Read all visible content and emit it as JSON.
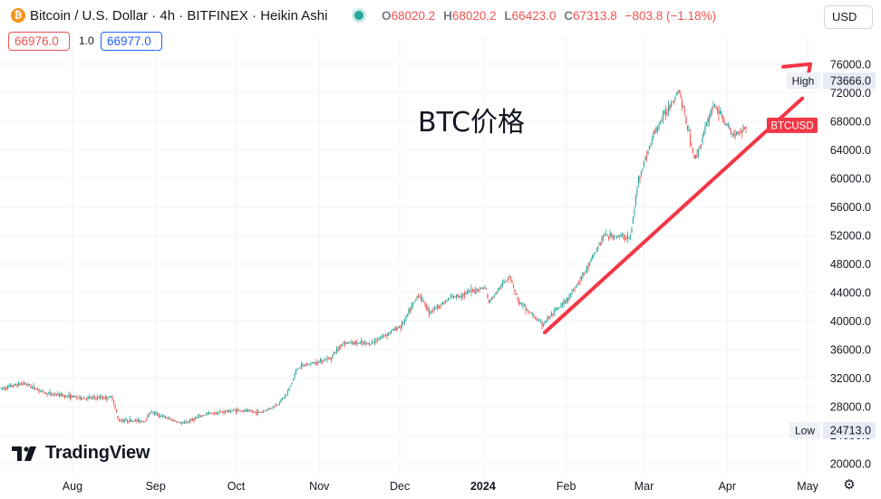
{
  "header": {
    "symbol_title": "Bitcoin / U.S. Dollar · 4h · BITFINEX · Heikin Ashi",
    "coin_icon": "bitcoin-icon",
    "ohlc": {
      "o_key": "O",
      "o_val": "68020.2",
      "h_key": "H",
      "h_val": "68020.2",
      "l_key": "L",
      "l_val": "66423.0",
      "c_key": "C",
      "c_val": "67313.8",
      "change": "−803.8 (−1.18%)"
    },
    "currency": "USD"
  },
  "trade": {
    "bid": "66976.0",
    "spread": "1.0",
    "ask": "66977.0"
  },
  "brand": {
    "logo_text": "TradingView"
  },
  "colors": {
    "up": "#26a69a",
    "down": "#ef5350",
    "trend": "#f23645",
    "axis_text": "#131722",
    "grid": "#f0f3fa"
  },
  "chart_data": {
    "type": "candlestick",
    "style": "Heikin Ashi",
    "interval": "4h",
    "annotation": "BTC价格",
    "ylim": [
      19000,
      78000
    ],
    "xlim": [
      "2023-07-05",
      "2024-05-04"
    ],
    "y_ticks": [
      "20000.0",
      "24000.0",
      "28000.0",
      "32000.0",
      "36000.0",
      "40000.0",
      "44000.0",
      "48000.0",
      "52000.0",
      "56000.0",
      "60000.0",
      "64000.0",
      "68000.0",
      "72000.0",
      "76000.0"
    ],
    "x_ticks": [
      {
        "label": "Aug",
        "date": "2023-08-01",
        "bold": false
      },
      {
        "label": "Sep",
        "date": "2023-09-01",
        "bold": false
      },
      {
        "label": "Oct",
        "date": "2023-10-01",
        "bold": false
      },
      {
        "label": "Nov",
        "date": "2023-11-01",
        "bold": false
      },
      {
        "label": "Dec",
        "date": "2023-12-01",
        "bold": false
      },
      {
        "label": "2024",
        "date": "2024-01-01",
        "bold": true
      },
      {
        "label": "Feb",
        "date": "2024-02-01",
        "bold": false
      },
      {
        "label": "Mar",
        "date": "2024-03-01",
        "bold": false
      },
      {
        "label": "Apr",
        "date": "2024-04-01",
        "bold": false
      },
      {
        "label": "May",
        "date": "2024-05-01",
        "bold": false
      }
    ],
    "price_series": [
      {
        "date": "2023-07-05",
        "value": 30500
      },
      {
        "date": "2023-07-14",
        "value": 31300
      },
      {
        "date": "2023-07-22",
        "value": 29900
      },
      {
        "date": "2023-08-05",
        "value": 29200
      },
      {
        "date": "2023-08-16",
        "value": 29300
      },
      {
        "date": "2023-08-18",
        "value": 26100
      },
      {
        "date": "2023-08-28",
        "value": 26000
      },
      {
        "date": "2023-08-30",
        "value": 27300
      },
      {
        "date": "2023-09-11",
        "value": 25600
      },
      {
        "date": "2023-09-20",
        "value": 27000
      },
      {
        "date": "2023-10-01",
        "value": 27500
      },
      {
        "date": "2023-10-10",
        "value": 27200
      },
      {
        "date": "2023-10-16",
        "value": 28200
      },
      {
        "date": "2023-10-20",
        "value": 29800
      },
      {
        "date": "2023-10-24",
        "value": 33500
      },
      {
        "date": "2023-11-05",
        "value": 34800
      },
      {
        "date": "2023-11-10",
        "value": 37000
      },
      {
        "date": "2023-11-20",
        "value": 36800
      },
      {
        "date": "2023-12-02",
        "value": 39500
      },
      {
        "date": "2023-12-08",
        "value": 43800
      },
      {
        "date": "2023-12-12",
        "value": 41300
      },
      {
        "date": "2023-12-20",
        "value": 43200
      },
      {
        "date": "2024-01-02",
        "value": 44800
      },
      {
        "date": "2024-01-03",
        "value": 42500
      },
      {
        "date": "2024-01-11",
        "value": 46500
      },
      {
        "date": "2024-01-14",
        "value": 42800
      },
      {
        "date": "2024-01-23",
        "value": 39500
      },
      {
        "date": "2024-02-01",
        "value": 42800
      },
      {
        "date": "2024-02-09",
        "value": 47500
      },
      {
        "date": "2024-02-15",
        "value": 52000
      },
      {
        "date": "2024-02-25",
        "value": 51700
      },
      {
        "date": "2024-02-28",
        "value": 60000
      },
      {
        "date": "2024-03-05",
        "value": 66500
      },
      {
        "date": "2024-03-14",
        "value": 72500
      },
      {
        "date": "2024-03-20",
        "value": 62500
      },
      {
        "date": "2024-03-27",
        "value": 70500
      },
      {
        "date": "2024-04-03",
        "value": 66000
      },
      {
        "date": "2024-04-08",
        "value": 67300
      }
    ],
    "trend_line": {
      "start": {
        "date": "2024-01-24",
        "value": 38400
      },
      "end": {
        "date": "2024-04-29",
        "value": 71200
      }
    },
    "trend_arrow_end": {
      "date": "2024-05-02",
      "value": 76000
    },
    "markers": {
      "high": {
        "label": "High",
        "value_text": "73666.0",
        "value": 73666
      },
      "low": {
        "label": "Low",
        "value_text": "24713.0",
        "value": 24713
      },
      "last": {
        "label": "BTCUSD",
        "value": 67300
      }
    }
  }
}
